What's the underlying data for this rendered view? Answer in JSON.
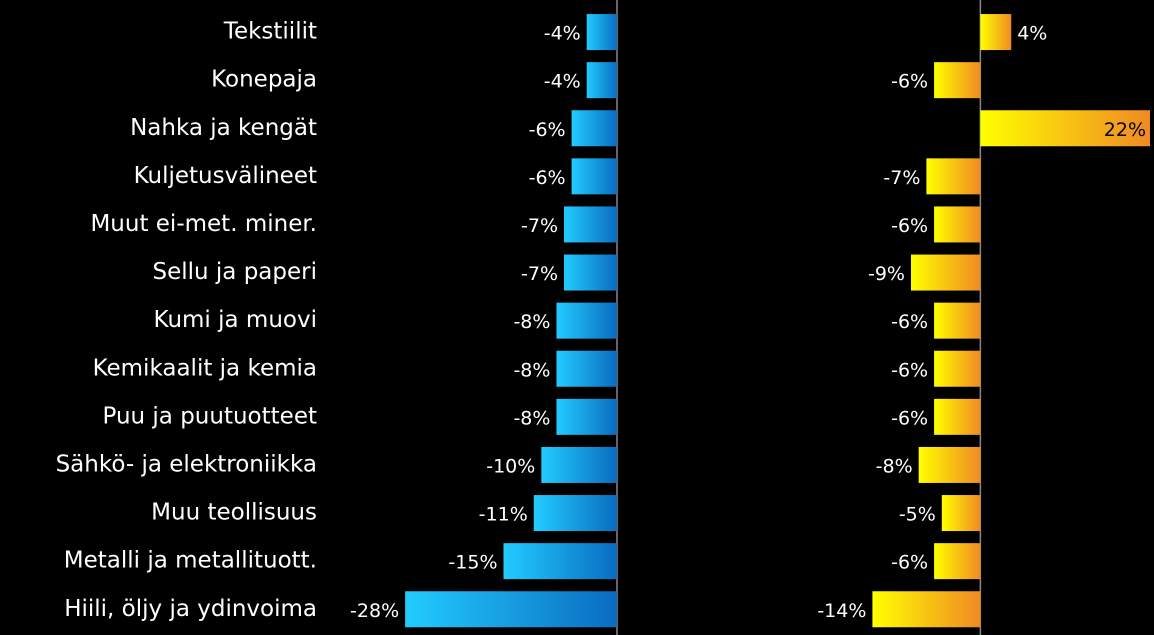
{
  "chart_data": [
    {
      "type": "bar",
      "orientation": "horizontal",
      "categories": [
        "Tekstiilit",
        "Konepaja",
        "Nahka ja kengät",
        "Kuljetusvälineet",
        "Muut ei-met. miner.",
        "Sellu ja paperi",
        "Kumi ja muovi",
        "Kemikaalit ja kemia",
        "Puu ja puutuotteet",
        "Sähkö- ja elektroniikka",
        "Muu teollisuus",
        "Metalli ja metallituott.",
        "Hiili, öljy ja ydinvoima"
      ],
      "values": [
        -4,
        -4,
        -6,
        -6,
        -7,
        -7,
        -8,
        -8,
        -8,
        -10,
        -11,
        -15,
        -28
      ],
      "value_labels": [
        "-4%",
        "-4%",
        "-6%",
        "-6%",
        "-7%",
        "-7%",
        "-8%",
        "-8%",
        "-8%",
        "-10%",
        "-11%",
        "-15%",
        "-28%"
      ],
      "color": [
        "#22ccff",
        "#0a6cc0"
      ],
      "xlim": [
        -30,
        0
      ]
    },
    {
      "type": "bar",
      "orientation": "horizontal",
      "values": [
        4,
        -6,
        22,
        -7,
        -6,
        -9,
        -6,
        -6,
        -6,
        -8,
        -5,
        -6,
        -14
      ],
      "value_labels": [
        "4%",
        "-6%",
        "22%",
        "-7%",
        "-6%",
        "-9%",
        "-6%",
        "-6%",
        "-6%",
        "-8%",
        "-5%",
        "-6%",
        "-14%"
      ],
      "color": [
        "#ffff00",
        "#f08a24"
      ],
      "xlim": [
        -16,
        22
      ]
    }
  ]
}
